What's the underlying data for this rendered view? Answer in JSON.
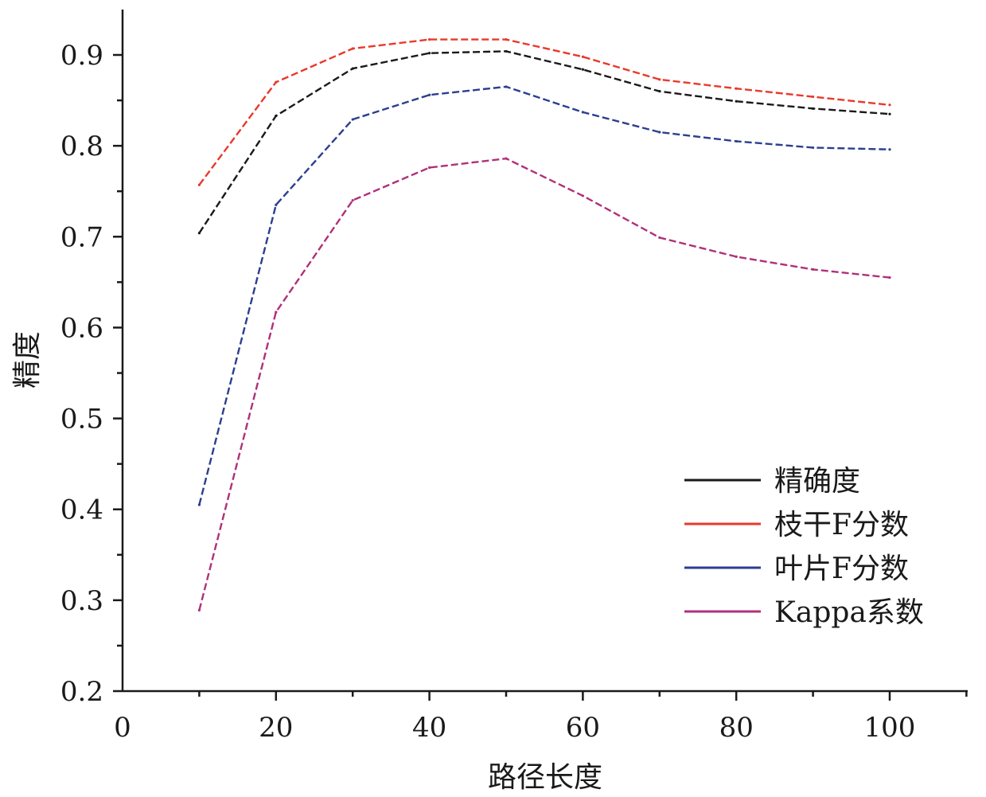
{
  "chart_data": {
    "type": "line",
    "title": "",
    "xlabel": "路径长度",
    "ylabel": "精度",
    "xlim": [
      0,
      110
    ],
    "ylim": [
      0.2,
      0.95
    ],
    "xticks": [
      "0",
      "20",
      "40",
      "60",
      "80",
      "100"
    ],
    "yticks": [
      "0.2",
      "0.3",
      "0.4",
      "0.5",
      "0.6",
      "0.7",
      "0.8",
      "0.9"
    ],
    "grid": false,
    "legend_position": "bottom-right",
    "x": [
      10,
      20,
      30,
      40,
      50,
      60,
      70,
      80,
      90,
      100
    ],
    "series": [
      {
        "name": "精确度",
        "color": "#1a1a1a",
        "values": [
          0.704,
          0.833,
          0.885,
          0.902,
          0.904,
          0.884,
          0.86,
          0.849,
          0.841,
          0.835
        ]
      },
      {
        "name": "枝干F分数",
        "color": "#e8392b",
        "values": [
          0.757,
          0.87,
          0.907,
          0.917,
          0.917,
          0.898,
          0.873,
          0.863,
          0.854,
          0.845
        ]
      },
      {
        "name": "叶片F分数",
        "color": "#2c3e8f",
        "values": [
          0.405,
          0.735,
          0.829,
          0.856,
          0.865,
          0.837,
          0.815,
          0.805,
          0.798,
          0.796
        ]
      },
      {
        "name": "Kappa系数",
        "color": "#b0307a",
        "values": [
          0.289,
          0.617,
          0.74,
          0.776,
          0.786,
          0.745,
          0.699,
          0.678,
          0.664,
          0.655
        ]
      }
    ]
  }
}
